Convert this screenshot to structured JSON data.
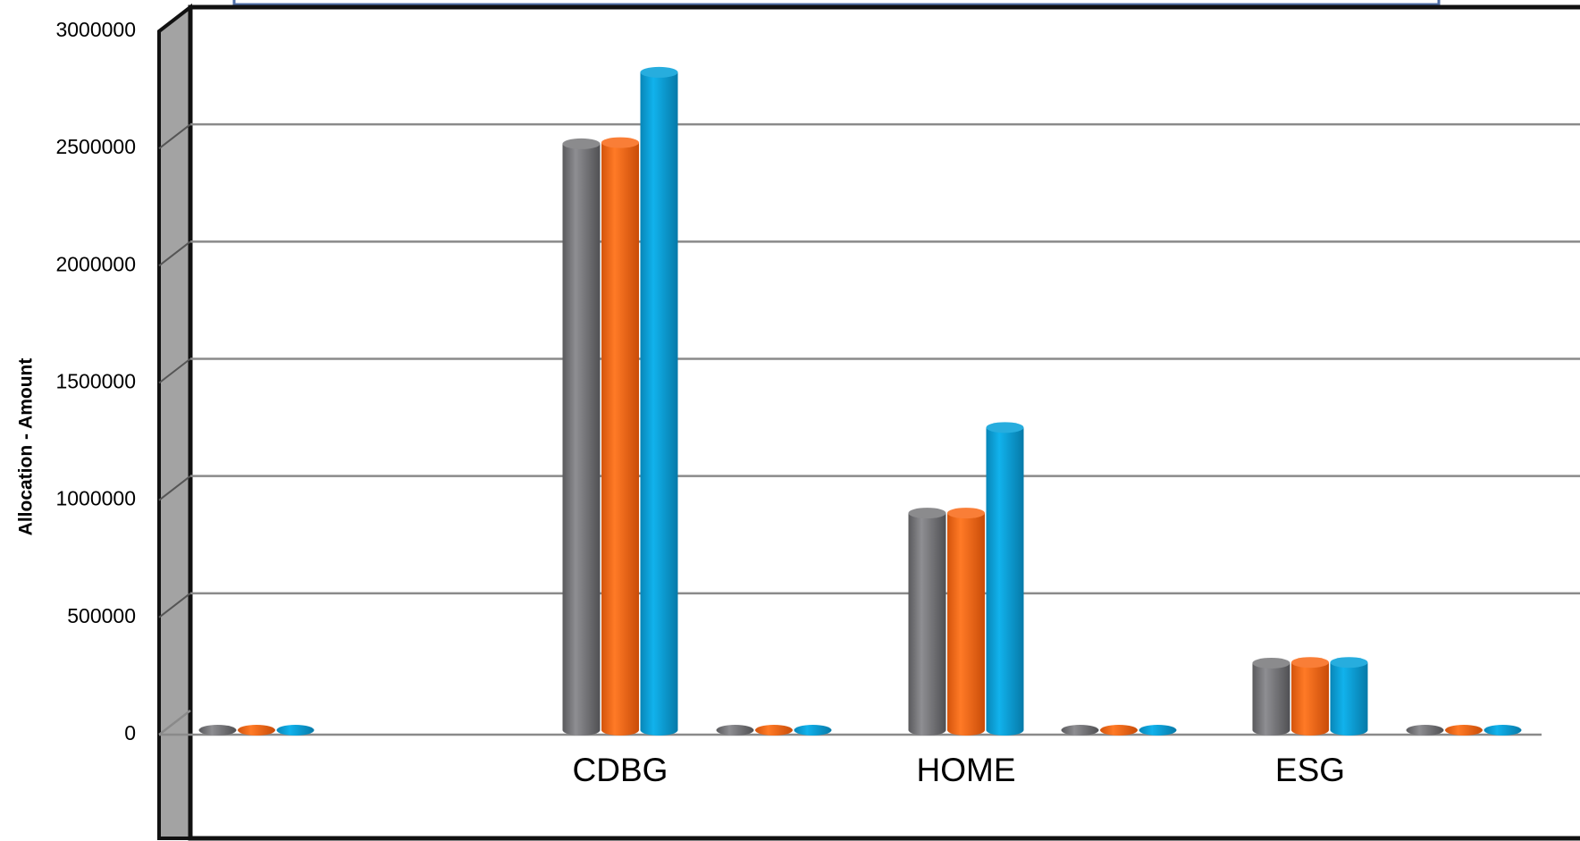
{
  "colors": {
    "series_gray": "#7b7b7e",
    "series_orange": "#f96d1c",
    "series_blue": "#0aa2da",
    "frame": "#111111",
    "side_wall": "#a3a3a3",
    "gridline": "#8a8a8a",
    "title_box_border": "#4f6fa8",
    "background_orange": "#f96d1c",
    "background_blue": "#3fc0ea"
  },
  "chart_data": {
    "type": "bar",
    "style": "3d-cylinder",
    "ylabel": "Allocation - Amount",
    "xlabel": "",
    "ylim": [
      0,
      3000000
    ],
    "y_ticks": [
      "0",
      "500000",
      "1000000",
      "1500000",
      "2000000",
      "2500000",
      "3000000"
    ],
    "categories": [
      "",
      "CDBG",
      "",
      "HOME",
      "",
      "ESG",
      ""
    ],
    "series": [
      {
        "values": [
          0,
          2440000,
          0,
          865000,
          0,
          225000,
          0
        ]
      },
      {
        "values": [
          0,
          2445000,
          0,
          865000,
          0,
          228000,
          0
        ]
      },
      {
        "values": [
          0,
          2745000,
          0,
          1230000,
          0,
          228000,
          0
        ]
      }
    ],
    "grid": true,
    "legend": "none"
  }
}
